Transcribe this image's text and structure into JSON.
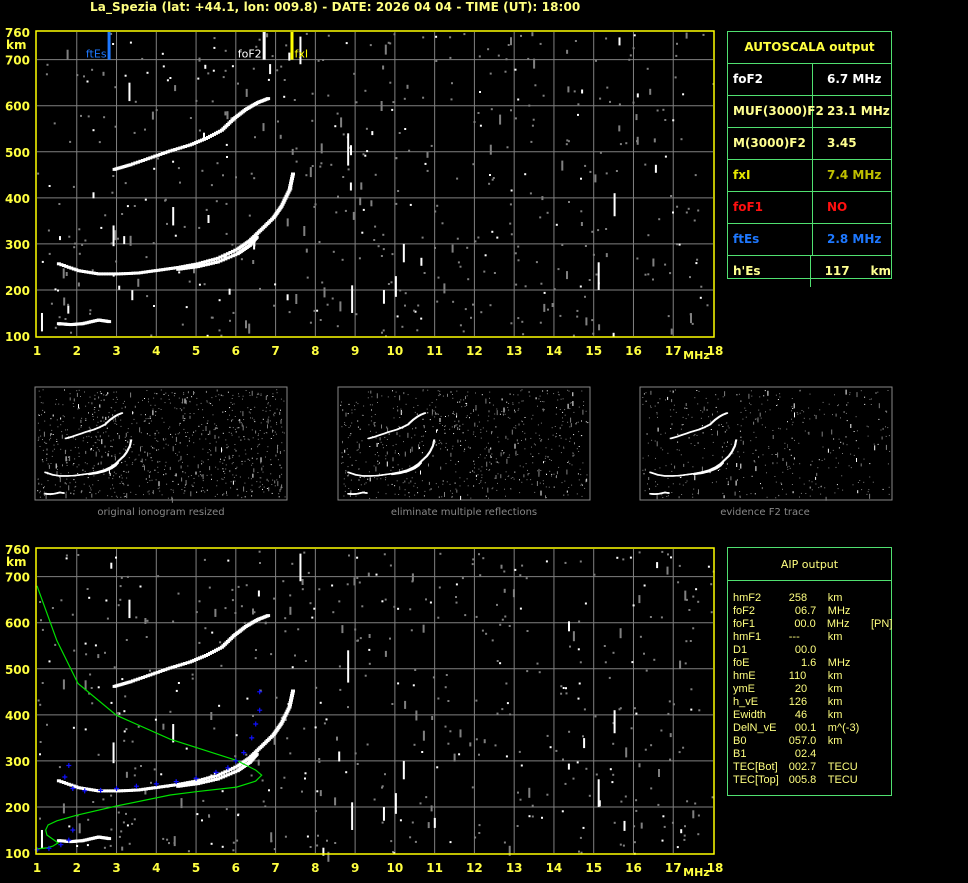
{
  "title": "La_Spezia (lat: +44.1, lon: 009.8) - DATE: 2026 04 04 - TIME (UT): 18:00",
  "autoscala": {
    "title": "AUTOSCALA output",
    "rows": [
      {
        "label": "foF2",
        "value": "6.7 MHz",
        "label_color": "#ffffff",
        "value_color": "#ffffff"
      },
      {
        "label": "MUF(3000)F2",
        "value": "23.1 MHz",
        "label_color": "#ffff90",
        "value_color": "#ffff90"
      },
      {
        "label": "M(3000)F2",
        "value": "3.45",
        "label_color": "#ffff90",
        "value_color": "#ffff90"
      },
      {
        "label": "fxI",
        "value": "7.4 MHz",
        "label_color": "#e8e800",
        "value_color": "#c0c000"
      },
      {
        "label": "foF1",
        "value": "NO",
        "label_color": "#ff1010",
        "value_color": "#ff1010"
      },
      {
        "label": "ftEs",
        "value": "2.8 MHz",
        "label_color": "#1e78ff",
        "value_color": "#1e78ff"
      },
      {
        "label": "h'Es",
        "value": "117     km",
        "label_color": "#ffff90",
        "value_color": "#ffff90"
      }
    ]
  },
  "aip": {
    "title": "AIP output",
    "rows": [
      [
        "hmF2",
        "258",
        "km",
        ""
      ],
      [
        "foF2",
        "  06.7",
        "MHz",
        ""
      ],
      [
        "foF1",
        "  00.0",
        "MHz",
        "[PN]"
      ],
      [
        "hmF1",
        "---",
        "km",
        ""
      ],
      [
        "D1",
        "  00.0",
        "",
        ""
      ],
      [
        "foE",
        "    1.6",
        "MHz",
        ""
      ],
      [
        "hmE",
        "110",
        "km",
        ""
      ],
      [
        "ymE",
        "  20",
        "km",
        ""
      ],
      [
        "h_vE",
        "126",
        "km",
        ""
      ],
      [
        "Ewidth",
        "  46",
        "km",
        ""
      ],
      [
        "DelN_vE",
        "  00.1",
        "m^(-3)",
        ""
      ],
      [
        "B0",
        "057.0",
        "km",
        ""
      ],
      [
        "B1",
        "  02.4",
        "",
        ""
      ],
      [
        "TEC[Bot]",
        "002.7",
        "TECU",
        ""
      ],
      [
        "TEC[Top]",
        "005.8",
        "TECU",
        ""
      ]
    ]
  },
  "thumbnails": [
    {
      "caption": "original ionogram resized"
    },
    {
      "caption": "eliminate multiple reflections"
    },
    {
      "caption": "evidence F2 trace"
    }
  ],
  "colors": {
    "axis": "#ffff40",
    "grid": "#808080",
    "frame": "#ffff00",
    "profile": "#00e000",
    "aip_points": "#1010ff"
  },
  "chart_data": [
    {
      "type": "scatter",
      "xlabel": "MHz",
      "ylabel": "km",
      "xlim": [
        1,
        18
      ],
      "ylim": [
        100,
        760
      ],
      "xticks": [
        1,
        2,
        3,
        4,
        5,
        6,
        7,
        8,
        9,
        10,
        11,
        12,
        13,
        14,
        15,
        16,
        17,
        18
      ],
      "yticks": [
        760,
        700,
        600,
        500,
        400,
        300,
        200,
        100
      ],
      "grid": true,
      "markers": [
        {
          "label": "ftEs",
          "freq": 2.8,
          "color": "#1e78ff",
          "side": "left"
        },
        {
          "label": "foF2",
          "freq": 6.7,
          "color": "#ffffff",
          "side": "left"
        },
        {
          "label": "fxI",
          "freq": 7.4,
          "color": "#ffff00",
          "side": "right"
        }
      ],
      "traces": {
        "F2_lower": [
          [
            1.5,
            260
          ],
          [
            2.0,
            245
          ],
          [
            2.5,
            238
          ],
          [
            3.0,
            238
          ],
          [
            3.5,
            240
          ],
          [
            4.0,
            246
          ],
          [
            4.5,
            252
          ],
          [
            5.0,
            260
          ],
          [
            5.5,
            272
          ],
          [
            6.0,
            292
          ],
          [
            6.3,
            310
          ],
          [
            6.6,
            335
          ],
          [
            6.9,
            360
          ],
          [
            7.1,
            385
          ],
          [
            7.3,
            420
          ],
          [
            7.4,
            460
          ]
        ],
        "F2_inner": [
          [
            4.5,
            248
          ],
          [
            5.0,
            254
          ],
          [
            5.5,
            264
          ],
          [
            6.0,
            282
          ],
          [
            6.3,
            300
          ],
          [
            6.5,
            320
          ]
        ],
        "F2_upper": [
          [
            2.9,
            465
          ],
          [
            3.3,
            475
          ],
          [
            3.8,
            490
          ],
          [
            4.3,
            505
          ],
          [
            4.8,
            518
          ],
          [
            5.2,
            532
          ],
          [
            5.6,
            550
          ],
          [
            5.9,
            575
          ],
          [
            6.2,
            595
          ],
          [
            6.5,
            610
          ],
          [
            6.8,
            620
          ]
        ],
        "Es": [
          [
            1.5,
            130
          ],
          [
            1.8,
            128
          ],
          [
            2.1,
            130
          ],
          [
            2.5,
            138
          ],
          [
            2.8,
            134
          ]
        ]
      }
    },
    {
      "type": "scatter",
      "xlabel": "MHz",
      "ylabel": "km",
      "xlim": [
        1,
        18
      ],
      "ylim": [
        100,
        760
      ],
      "xticks": [
        1,
        2,
        3,
        4,
        5,
        6,
        7,
        8,
        9,
        10,
        11,
        12,
        13,
        14,
        15,
        16,
        17,
        18
      ],
      "yticks": [
        760,
        700,
        600,
        500,
        400,
        300,
        200,
        100
      ],
      "grid": true,
      "profile": [
        [
          1.0,
          680
        ],
        [
          1.5,
          561
        ],
        [
          2.03,
          468
        ],
        [
          3.0,
          399
        ],
        [
          4.35,
          347
        ],
        [
          6.02,
          301
        ],
        [
          6.5,
          280
        ],
        [
          6.65,
          269
        ],
        [
          6.5,
          256
        ],
        [
          6.02,
          243
        ],
        [
          5.0,
          233
        ],
        [
          4.35,
          226
        ],
        [
          3.0,
          202
        ],
        [
          2.0,
          182
        ],
        [
          1.5,
          170
        ],
        [
          1.28,
          161
        ],
        [
          1.22,
          150
        ],
        [
          1.25,
          139
        ],
        [
          1.4,
          130
        ],
        [
          1.53,
          122
        ],
        [
          1.4,
          115
        ],
        [
          1.25,
          111
        ],
        [
          1.0,
          109
        ]
      ],
      "aip_points": [
        [
          1.0,
          107
        ],
        [
          1.3,
          110
        ],
        [
          1.6,
          118
        ],
        [
          1.8,
          128
        ],
        [
          1.9,
          150
        ],
        [
          1.7,
          265
        ],
        [
          1.8,
          290
        ],
        [
          1.9,
          240
        ],
        [
          2.2,
          235
        ],
        [
          2.6,
          236
        ],
        [
          3.0,
          240
        ],
        [
          3.5,
          245
        ],
        [
          4.0,
          250
        ],
        [
          4.5,
          255
        ],
        [
          5.0,
          262
        ],
        [
          5.5,
          275
        ],
        [
          5.8,
          285
        ],
        [
          6.0,
          300
        ],
        [
          6.2,
          318
        ],
        [
          6.4,
          350
        ],
        [
          6.5,
          380
        ],
        [
          6.6,
          410
        ],
        [
          6.6,
          450
        ]
      ],
      "traces": {
        "F2_lower": [
          [
            1.5,
            260
          ],
          [
            2.0,
            245
          ],
          [
            2.5,
            238
          ],
          [
            3.0,
            238
          ],
          [
            3.5,
            240
          ],
          [
            4.0,
            246
          ],
          [
            4.5,
            252
          ],
          [
            5.0,
            260
          ],
          [
            5.5,
            272
          ],
          [
            6.0,
            292
          ],
          [
            6.3,
            310
          ],
          [
            6.6,
            335
          ],
          [
            6.9,
            360
          ],
          [
            7.1,
            385
          ],
          [
            7.3,
            420
          ],
          [
            7.4,
            460
          ]
        ],
        "F2_inner": [
          [
            4.5,
            248
          ],
          [
            5.0,
            254
          ],
          [
            5.5,
            264
          ],
          [
            6.0,
            282
          ],
          [
            6.3,
            300
          ],
          [
            6.5,
            320
          ]
        ],
        "F2_upper": [
          [
            2.9,
            465
          ],
          [
            3.3,
            475
          ],
          [
            3.8,
            490
          ],
          [
            4.3,
            505
          ],
          [
            4.8,
            518
          ],
          [
            5.2,
            532
          ],
          [
            5.6,
            550
          ],
          [
            5.9,
            575
          ],
          [
            6.2,
            595
          ],
          [
            6.5,
            610
          ],
          [
            6.8,
            620
          ]
        ],
        "Es": [
          [
            1.5,
            130
          ],
          [
            1.8,
            128
          ],
          [
            2.1,
            130
          ],
          [
            2.5,
            138
          ],
          [
            2.8,
            134
          ]
        ]
      }
    }
  ]
}
